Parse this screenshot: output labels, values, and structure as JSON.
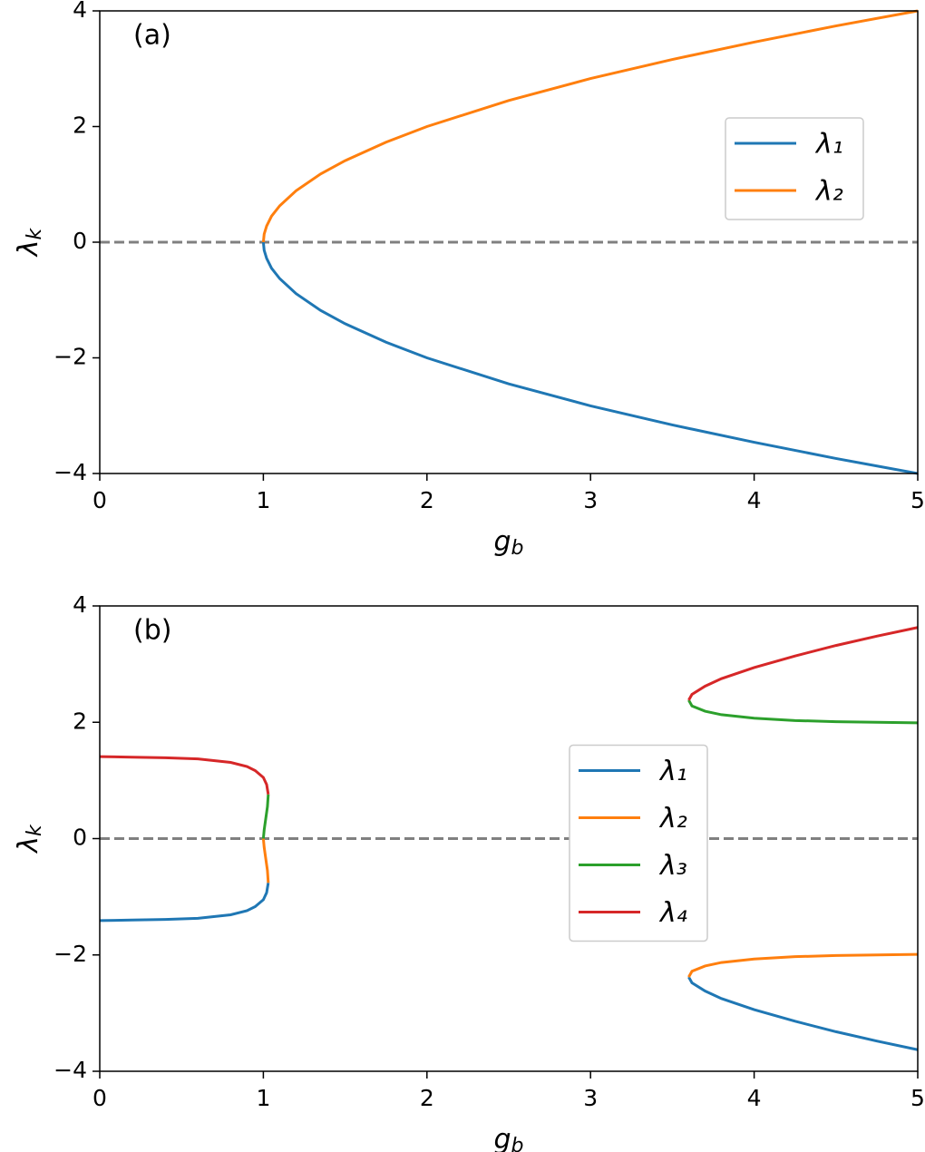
{
  "chart_data": [
    {
      "type": "line",
      "panel_label": "(a)",
      "xlabel": {
        "base": "g",
        "sub": "b"
      },
      "ylabel": {
        "base": "λ",
        "sub": "k"
      },
      "xlim": [
        0,
        5
      ],
      "ylim": [
        -4,
        4
      ],
      "xticks": [
        0,
        1,
        2,
        3,
        4,
        5
      ],
      "yticks": [
        {
          "value": -4,
          "label": "−4"
        },
        {
          "value": -2,
          "label": "−2"
        },
        0,
        2,
        4
      ],
      "hline": 0,
      "legend": "upper right",
      "series": [
        {
          "name": "λ₁",
          "color": "#1f77b4",
          "x": [
            1,
            1.005,
            1.02,
            1.05,
            1.1,
            1.2,
            1.35,
            1.5,
            1.75,
            2,
            2.5,
            3,
            3.5,
            4,
            4.5,
            5
          ],
          "values": [
            0,
            -0.14,
            -0.28,
            -0.45,
            -0.63,
            -0.89,
            -1.18,
            -1.41,
            -1.73,
            -2,
            -2.45,
            -2.83,
            -3.16,
            -3.46,
            -3.74,
            -4
          ]
        },
        {
          "name": "λ₂",
          "color": "#ff7f0e",
          "x": [
            1,
            1.005,
            1.02,
            1.05,
            1.1,
            1.2,
            1.35,
            1.5,
            1.75,
            2,
            2.5,
            3,
            3.5,
            4,
            4.5,
            5
          ],
          "values": [
            0,
            0.14,
            0.28,
            0.45,
            0.63,
            0.89,
            1.18,
            1.41,
            1.73,
            2,
            2.45,
            2.83,
            3.16,
            3.46,
            3.74,
            4
          ]
        }
      ]
    },
    {
      "type": "line",
      "panel_label": "(b)",
      "xlabel": {
        "base": "g",
        "sub": "b"
      },
      "ylabel": {
        "base": "λ",
        "sub": "k"
      },
      "xlim": [
        0,
        5
      ],
      "ylim": [
        -4,
        4
      ],
      "xticks": [
        0,
        1,
        2,
        3,
        4,
        5
      ],
      "yticks": [
        {
          "value": -4,
          "label": "−4"
        },
        {
          "value": -2,
          "label": "−2"
        },
        0,
        2,
        4
      ],
      "hline": 0,
      "legend": "center",
      "series": [
        {
          "name": "λ₁",
          "color": "#1f77b4",
          "x": [
            0,
            0.2,
            0.4,
            0.6,
            0.8,
            0.9,
            0.95,
            1,
            1.02,
            1.03,
            2,
            3.6,
            3.62,
            3.7,
            3.8,
            4,
            4.25,
            4.5,
            4.75,
            5
          ],
          "values": [
            -1.41,
            -1.4,
            -1.39,
            -1.37,
            -1.31,
            -1.24,
            -1.17,
            -1.05,
            -0.93,
            -0.76,
            null,
            -2.38,
            -2.48,
            -2.62,
            -2.75,
            -2.94,
            -3.14,
            -3.32,
            -3.48,
            -3.63
          ]
        },
        {
          "name": "λ₂",
          "color": "#ff7f0e",
          "x": [
            1,
            1.005,
            1.015,
            1.025,
            1.03,
            2,
            3.6,
            3.62,
            3.7,
            3.8,
            4,
            4.25,
            4.5,
            4.75,
            5
          ],
          "values": [
            0,
            -0.15,
            -0.35,
            -0.55,
            -0.76,
            null,
            -2.38,
            -2.28,
            -2.19,
            -2.13,
            -2.07,
            -2.03,
            -2.01,
            -2,
            -1.99
          ]
        },
        {
          "name": "λ₃",
          "color": "#2ca02c",
          "x": [
            1,
            1.005,
            1.015,
            1.025,
            1.03,
            2,
            3.6,
            3.62,
            3.7,
            3.8,
            4,
            4.25,
            4.5,
            4.75,
            5
          ],
          "values": [
            0,
            0.15,
            0.35,
            0.55,
            0.76,
            null,
            2.38,
            2.28,
            2.19,
            2.13,
            2.07,
            2.03,
            2.01,
            2,
            1.99
          ]
        },
        {
          "name": "λ₄",
          "color": "#d62728",
          "x": [
            0,
            0.2,
            0.4,
            0.6,
            0.8,
            0.9,
            0.95,
            1,
            1.02,
            1.03,
            2,
            3.6,
            3.62,
            3.7,
            3.8,
            4,
            4.25,
            4.5,
            4.75,
            5
          ],
          "values": [
            1.41,
            1.4,
            1.39,
            1.37,
            1.31,
            1.24,
            1.17,
            1.05,
            0.93,
            0.76,
            null,
            2.38,
            2.48,
            2.62,
            2.75,
            2.94,
            3.14,
            3.32,
            3.48,
            3.63
          ]
        }
      ]
    }
  ]
}
